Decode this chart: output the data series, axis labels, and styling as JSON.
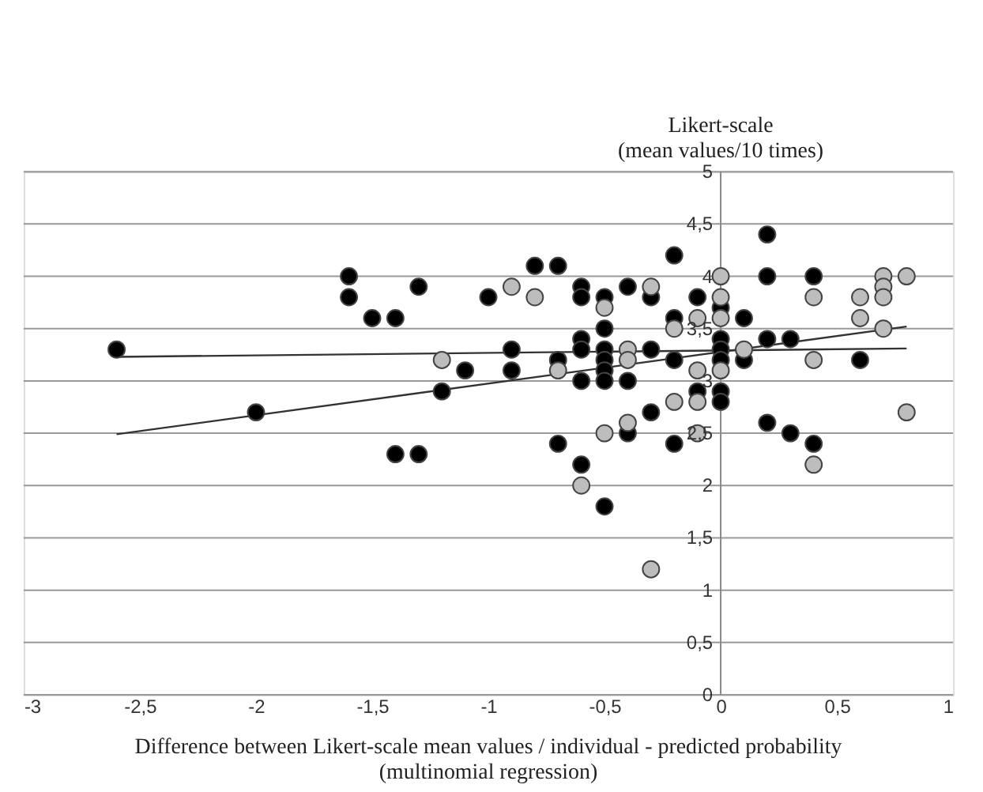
{
  "chart_data": {
    "type": "scatter",
    "ylabel": "Likert-scale\n(mean values/10 times)",
    "xlabel": "Difference between Likert-scale mean values / individual - predicted probability\n(multinomial regression)",
    "xlim": [
      -3,
      1
    ],
    "xticks": [
      -3,
      {
        "value": -2.5,
        "label": "-2,5"
      },
      -2,
      {
        "value": -1.5,
        "label": "-1,5"
      },
      -1,
      {
        "value": -0.5,
        "label": "-0,5"
      },
      0,
      {
        "value": 0.5,
        "label": "0,5"
      },
      1
    ],
    "ylim": [
      0,
      5
    ],
    "yticks": [
      0,
      {
        "value": 0.5,
        "label": "0,5"
      },
      1,
      {
        "value": 1.5,
        "label": "1,5"
      },
      2,
      {
        "value": 2.5,
        "label": "2,5"
      },
      3,
      {
        "value": 3.5,
        "label": "3,5"
      },
      4,
      {
        "value": 4.5,
        "label": "4,5"
      },
      5
    ],
    "grid": "y",
    "series": [
      {
        "type": "scatter",
        "marker": "circle",
        "color": "#000000",
        "x": [
          -2.6,
          -2.0,
          -1.6,
          -1.6,
          -1.5,
          -1.4,
          -1.3,
          -1.4,
          -1.3,
          -1.2,
          -1.1,
          -1.0,
          -0.9,
          -0.9,
          -0.8,
          -0.7,
          -0.7,
          -0.7,
          -0.6,
          -0.6,
          -0.6,
          -0.6,
          -0.6,
          -0.6,
          -0.5,
          -0.5,
          -0.5,
          -0.5,
          -0.5,
          -0.5,
          -0.5,
          -0.4,
          -0.4,
          -0.4,
          -0.3,
          -0.3,
          -0.3,
          -0.2,
          -0.2,
          -0.2,
          -0.2,
          -0.1,
          -0.1,
          0,
          0,
          0,
          0,
          0,
          0,
          0.1,
          0.1,
          0.2,
          0.2,
          0.2,
          0.2,
          0.3,
          0.3,
          0.4,
          0.4,
          0.6
        ],
        "values": [
          3.3,
          2.7,
          4.0,
          3.8,
          3.6,
          3.6,
          3.9,
          2.3,
          2.3,
          2.9,
          3.1,
          3.8,
          3.3,
          3.1,
          4.1,
          4.1,
          3.2,
          2.4,
          3.9,
          3.8,
          3.4,
          3.3,
          3.0,
          2.2,
          3.8,
          3.5,
          3.3,
          3.2,
          3.1,
          3.0,
          1.8,
          3.9,
          3.0,
          2.5,
          3.8,
          3.3,
          2.7,
          4.2,
          3.6,
          3.2,
          2.4,
          3.8,
          2.9,
          3.7,
          3.4,
          3.3,
          3.2,
          2.9,
          2.8,
          3.6,
          3.2,
          4.4,
          4.0,
          3.4,
          2.6,
          3.4,
          2.5,
          4.0,
          2.4,
          3.2
        ]
      },
      {
        "type": "scatter",
        "marker": "circle",
        "color": "#bdbdbd",
        "x": [
          -1.2,
          -0.9,
          -0.8,
          -0.7,
          -0.6,
          -0.5,
          -0.5,
          -0.4,
          -0.4,
          -0.4,
          -0.3,
          -0.3,
          -0.2,
          -0.2,
          -0.1,
          -0.1,
          -0.1,
          -0.1,
          0,
          0,
          0,
          0,
          0.1,
          0.4,
          0.4,
          0.4,
          0.6,
          0.6,
          0.7,
          0.7,
          0.7,
          0.7,
          0.8,
          0.8
        ],
        "values": [
          3.2,
          3.9,
          3.8,
          3.1,
          2.0,
          3.7,
          2.5,
          3.3,
          3.2,
          2.6,
          3.9,
          1.2,
          3.5,
          2.8,
          3.6,
          3.1,
          2.8,
          2.5,
          4.0,
          3.8,
          3.6,
          3.1,
          3.3,
          3.8,
          3.2,
          2.2,
          3.8,
          3.6,
          4.0,
          3.9,
          3.8,
          3.5,
          4.0,
          2.7
        ]
      },
      {
        "type": "line",
        "color": "#333333",
        "x": [
          -2.6,
          0.8
        ],
        "values": [
          3.23,
          3.31
        ]
      },
      {
        "type": "line",
        "color": "#333333",
        "x": [
          -2.6,
          0.8
        ],
        "values": [
          2.49,
          3.52
        ]
      }
    ]
  }
}
